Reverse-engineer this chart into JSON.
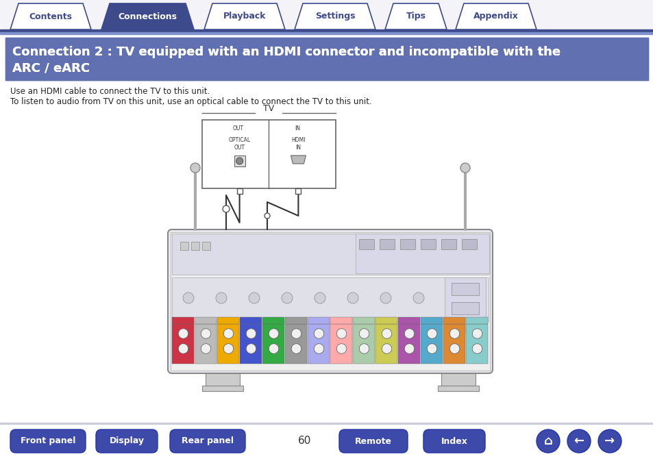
{
  "bg_color": "#ffffff",
  "tab_items": [
    "Contents",
    "Connections",
    "Playback",
    "Settings",
    "Tips",
    "Appendix"
  ],
  "tab_active": 1,
  "tab_active_color": "#3d4a8c",
  "tab_inactive_color": "#ffffff",
  "tab_border_color": "#3d4a8c",
  "tab_text_active": "#ffffff",
  "tab_text_inactive": "#3d4a8c",
  "header_bg": "#6070b0",
  "header_text_line1": "Connection 2 : TV equipped with an HDMI connector and incompatible with the",
  "header_text_line2": "ARC / eARC",
  "header_text_color": "#ffffff",
  "body_text1": "Use an HDMI cable to connect the TV to this unit.",
  "body_text2": "To listen to audio from TV on this unit, use an optical cable to connect the TV to this unit.",
  "tv_label": "TV",
  "bottom_buttons": [
    "Front panel",
    "Display",
    "Rear panel",
    "Remote",
    "Index"
  ],
  "page_number": "60",
  "button_color": "#3d4aaa",
  "button_text_color": "#ffffff",
  "nav_line_color": "#3d4a8c",
  "receiver_fill": "#e8e8ee",
  "receiver_stroke": "#666666",
  "antenna_color": "#aaaaaa",
  "cable_color": "#333333",
  "tv_box_fill": "#ffffff",
  "tv_box_stroke": "#666666"
}
